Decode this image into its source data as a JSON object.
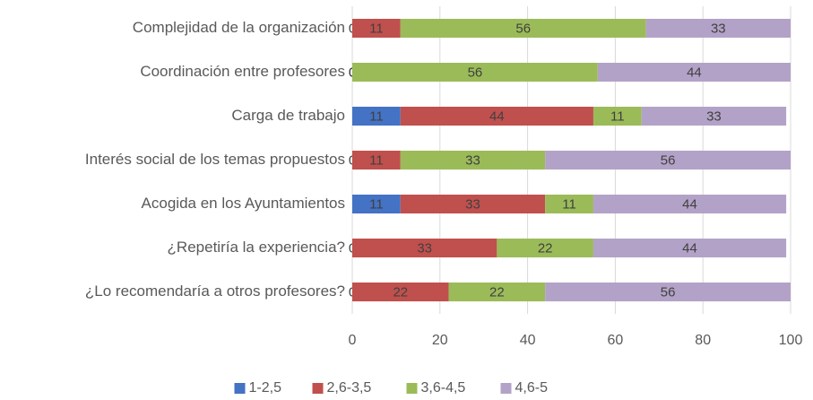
{
  "chart_data": {
    "type": "stacked-bar-horizontal",
    "categories": [
      "Complejidad de la organización",
      "Coordinación entre profesores",
      "Carga de trabajo",
      "Interés social de los temas propuestos",
      "Acogida en los Ayuntamientos",
      "¿Repetiría la experiencia?",
      "¿Lo recomendaría a otros profesores?"
    ],
    "series": [
      {
        "name": "1-2,5",
        "color": "#4472c4",
        "values": [
          0,
          0,
          11,
          0,
          11,
          0,
          0
        ]
      },
      {
        "name": "2,6-3,5",
        "color": "#c0504d",
        "values": [
          11,
          0,
          44,
          11,
          33,
          33,
          22
        ]
      },
      {
        "name": "3,6-4,5",
        "color": "#9bbb59",
        "values": [
          56,
          56,
          11,
          33,
          11,
          22,
          22
        ]
      },
      {
        "name": "4,6-5",
        "color": "#b3a2c7",
        "values": [
          33,
          44,
          33,
          56,
          44,
          44,
          56
        ]
      }
    ],
    "xlim": [
      0,
      100
    ],
    "xticks": [
      0,
      20,
      40,
      60,
      80,
      100
    ],
    "grid": true,
    "legend": "bottom"
  }
}
